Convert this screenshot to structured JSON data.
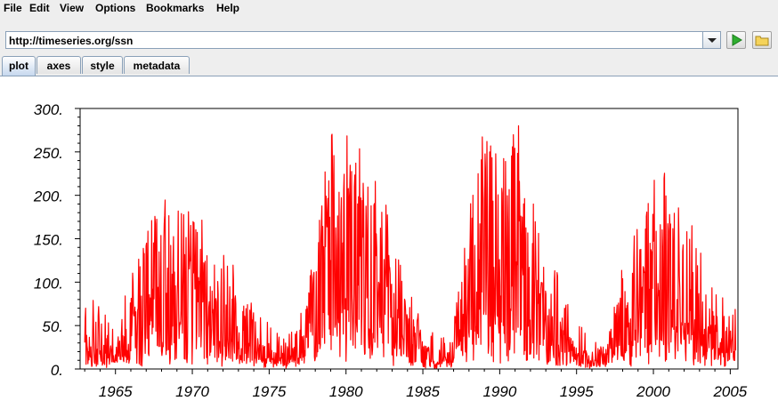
{
  "menu": [
    "File",
    "Edit",
    "View",
    "Options",
    "Bookmarks",
    "Help"
  ],
  "url": {
    "value": "http://timeseries.org/ssn"
  },
  "toolbar": {
    "run_icon": "play-icon",
    "open_icon": "folder-icon"
  },
  "tabs": [
    {
      "label": "plot",
      "active": true
    },
    {
      "label": "axes",
      "active": false
    },
    {
      "label": "style",
      "active": false
    },
    {
      "label": "metadata",
      "active": false
    }
  ],
  "colors": {
    "series": "#ff0000",
    "axis": "#000000",
    "tab_active": "#c6d8ee"
  },
  "chart_data": {
    "type": "line",
    "title": "",
    "xlabel": "",
    "ylabel": "",
    "xlim": [
      1962.7,
      2005.5
    ],
    "ylim": [
      0,
      300
    ],
    "x_ticks": [
      1965,
      1970,
      1975,
      1980,
      1985,
      1990,
      1995,
      2000,
      2005
    ],
    "x_tick_labels": [
      "1965",
      "1970",
      "1975",
      "1980",
      "1985",
      "1990",
      "1995",
      "2000",
      "2005"
    ],
    "y_ticks": [
      0,
      50,
      100,
      150,
      200,
      250,
      300
    ],
    "y_tick_labels": [
      "0.",
      "50.",
      "100.",
      "150.",
      "200.",
      "250.",
      "300."
    ],
    "series": [
      {
        "name": "ssn",
        "color": "#ff0000",
        "x": [
          1963.0,
          1964.0,
          1965.0,
          1966.0,
          1967.0,
          1968.0,
          1969.0,
          1970.0,
          1971.0,
          1972.0,
          1973.0,
          1974.0,
          1975.0,
          1976.0,
          1977.0,
          1978.0,
          1979.0,
          1980.0,
          1981.0,
          1982.0,
          1983.0,
          1984.0,
          1985.0,
          1986.0,
          1987.0,
          1988.0,
          1989.0,
          1990.0,
          1991.0,
          1992.0,
          1993.0,
          1994.0,
          1995.0,
          1996.0,
          1997.0,
          1998.0,
          1999.0,
          2000.0,
          2001.0,
          2002.0,
          2003.0,
          2004.0,
          2005.0
        ],
        "envelope": [
          90,
          80,
          45,
          110,
          180,
          210,
          215,
          195,
          160,
          150,
          110,
          85,
          55,
          35,
          60,
          165,
          255,
          305,
          245,
          220,
          170,
          100,
          55,
          35,
          55,
          185,
          290,
          260,
          300,
          220,
          150,
          110,
          65,
          35,
          40,
          130,
          175,
          240,
          235,
          200,
          150,
          95,
          70
        ],
        "mean": [
          28,
          10,
          15,
          47,
          94,
          106,
          105,
          104,
          67,
          69,
          38,
          34,
          16,
          13,
          27,
          93,
          155,
          155,
          141,
          116,
          67,
          46,
          18,
          14,
          29,
          100,
          158,
          142,
          146,
          94,
          55,
          30,
          17,
          9,
          21,
          64,
          93,
          120,
          111,
          104,
          64,
          40,
          30
        ]
      }
    ]
  }
}
